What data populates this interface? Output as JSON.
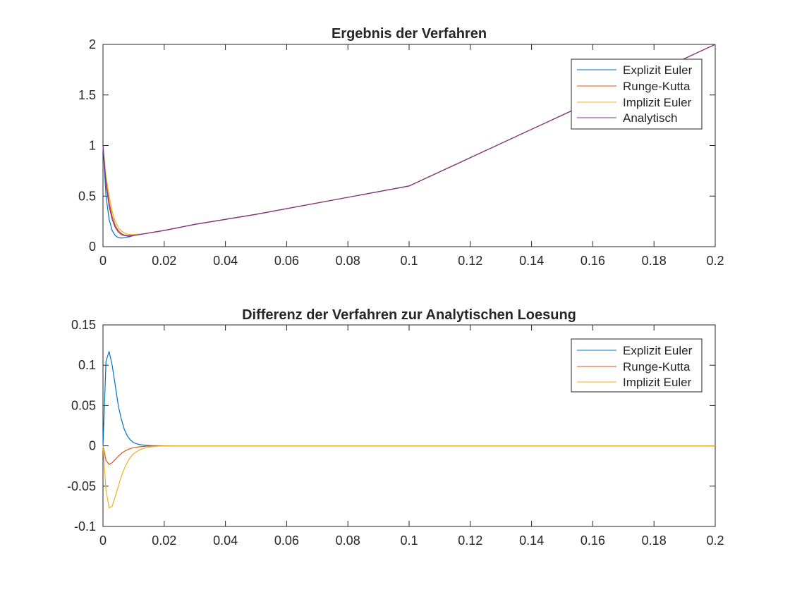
{
  "chart_data": [
    {
      "type": "line",
      "title": "Ergebnis der Verfahren",
      "xlabel": "",
      "ylabel": "",
      "xlim": [
        0,
        0.2
      ],
      "ylim": [
        0,
        2
      ],
      "xticks": [
        0,
        0.02,
        0.04,
        0.06,
        0.08,
        0.1,
        0.12,
        0.14,
        0.16,
        0.18,
        0.2
      ],
      "xtick_labels": [
        "0",
        "0.02",
        "0.04",
        "0.06",
        "0.08",
        "0.1",
        "0.12",
        "0.14",
        "0.16",
        "0.18",
        "0.2"
      ],
      "yticks": [
        0,
        0.5,
        1,
        1.5,
        2
      ],
      "ytick_labels": [
        "0",
        "0.5",
        "1",
        "1.5",
        "2"
      ],
      "grid": false,
      "legend_position": "top-right",
      "series": [
        {
          "name": "Explizit Euler",
          "color": "#0072BD",
          "x": [
            0,
            0.001,
            0.002,
            0.003,
            0.004,
            0.005,
            0.006,
            0.007,
            0.008,
            0.009,
            0.01,
            0.012,
            0.014,
            0.016,
            0.02,
            0.03,
            0.05,
            0.1,
            0.15,
            0.2
          ],
          "y": [
            1.0,
            0.5,
            0.27,
            0.16,
            0.11,
            0.09,
            0.085,
            0.088,
            0.095,
            0.1,
            0.11,
            0.12,
            0.13,
            0.14,
            0.16,
            0.22,
            0.32,
            0.6,
            1.3,
            2.0
          ]
        },
        {
          "name": "Runge-Kutta",
          "color": "#D95319",
          "x": [
            0,
            0.001,
            0.002,
            0.003,
            0.004,
            0.005,
            0.006,
            0.007,
            0.008,
            0.009,
            0.01,
            0.012,
            0.014,
            0.016,
            0.02,
            0.03,
            0.05,
            0.1,
            0.15,
            0.2
          ],
          "y": [
            1.0,
            0.65,
            0.44,
            0.3,
            0.21,
            0.16,
            0.13,
            0.115,
            0.11,
            0.11,
            0.115,
            0.12,
            0.13,
            0.14,
            0.16,
            0.22,
            0.32,
            0.6,
            1.3,
            2.0
          ]
        },
        {
          "name": "Implizit Euler",
          "color": "#EDB120",
          "x": [
            0,
            0.001,
            0.002,
            0.003,
            0.004,
            0.005,
            0.006,
            0.007,
            0.008,
            0.009,
            0.01,
            0.012,
            0.014,
            0.016,
            0.02,
            0.03,
            0.05,
            0.1,
            0.15,
            0.2
          ],
          "y": [
            1.0,
            0.7,
            0.5,
            0.35,
            0.25,
            0.19,
            0.155,
            0.135,
            0.125,
            0.12,
            0.12,
            0.125,
            0.13,
            0.14,
            0.16,
            0.22,
            0.32,
            0.6,
            1.3,
            2.0
          ]
        },
        {
          "name": "Analytisch",
          "color": "#7E2F8E",
          "x": [
            0,
            0.001,
            0.002,
            0.003,
            0.004,
            0.005,
            0.006,
            0.007,
            0.008,
            0.009,
            0.01,
            0.012,
            0.014,
            0.016,
            0.02,
            0.03,
            0.05,
            0.1,
            0.15,
            0.2
          ],
          "y": [
            1.0,
            0.62,
            0.4,
            0.27,
            0.19,
            0.145,
            0.12,
            0.11,
            0.105,
            0.105,
            0.11,
            0.12,
            0.13,
            0.14,
            0.16,
            0.22,
            0.32,
            0.6,
            1.3,
            2.0
          ]
        }
      ]
    },
    {
      "type": "line",
      "title": "Differenz der Verfahren zur Analytischen Loesung",
      "xlabel": "",
      "ylabel": "",
      "xlim": [
        0,
        0.2
      ],
      "ylim": [
        -0.1,
        0.15
      ],
      "xticks": [
        0,
        0.02,
        0.04,
        0.06,
        0.08,
        0.1,
        0.12,
        0.14,
        0.16,
        0.18,
        0.2
      ],
      "xtick_labels": [
        "0",
        "0.02",
        "0.04",
        "0.06",
        "0.08",
        "0.1",
        "0.12",
        "0.14",
        "0.16",
        "0.18",
        "0.2"
      ],
      "yticks": [
        -0.1,
        -0.05,
        0,
        0.05,
        0.1,
        0.15
      ],
      "ytick_labels": [
        "-0.1",
        "-0.05",
        "0",
        "0.05",
        "0.1",
        "0.15"
      ],
      "grid": false,
      "legend_position": "top-right",
      "series": [
        {
          "name": "Explizit Euler",
          "color": "#0072BD",
          "x": [
            0,
            0.001,
            0.002,
            0.003,
            0.004,
            0.005,
            0.006,
            0.007,
            0.008,
            0.009,
            0.01,
            0.011,
            0.012,
            0.014,
            0.016,
            0.02,
            0.025,
            0.2
          ],
          "y": [
            0,
            0.105,
            0.117,
            0.1,
            0.075,
            0.05,
            0.033,
            0.02,
            0.012,
            0.007,
            0.004,
            0.0025,
            0.0015,
            0.0006,
            0.0002,
            0,
            0,
            0
          ]
        },
        {
          "name": "Runge-Kutta",
          "color": "#D95319",
          "x": [
            0,
            0.001,
            0.002,
            0.003,
            0.004,
            0.005,
            0.006,
            0.007,
            0.008,
            0.009,
            0.01,
            0.012,
            0.014,
            0.016,
            0.02,
            0.025,
            0.2
          ],
          "y": [
            0,
            -0.018,
            -0.023,
            -0.021,
            -0.017,
            -0.013,
            -0.0095,
            -0.0068,
            -0.0048,
            -0.0033,
            -0.0023,
            -0.0011,
            -0.0005,
            -0.0002,
            0,
            0,
            0
          ]
        },
        {
          "name": "Implizit Euler",
          "color": "#EDB120",
          "x": [
            0,
            0.001,
            0.002,
            0.003,
            0.004,
            0.005,
            0.006,
            0.007,
            0.008,
            0.009,
            0.01,
            0.012,
            0.014,
            0.016,
            0.018,
            0.02,
            0.025,
            0.2
          ],
          "y": [
            0,
            -0.055,
            -0.077,
            -0.075,
            -0.063,
            -0.05,
            -0.038,
            -0.028,
            -0.02,
            -0.014,
            -0.0098,
            -0.0048,
            -0.0023,
            -0.0011,
            -0.0005,
            -0.0002,
            0,
            0
          ]
        }
      ]
    }
  ]
}
